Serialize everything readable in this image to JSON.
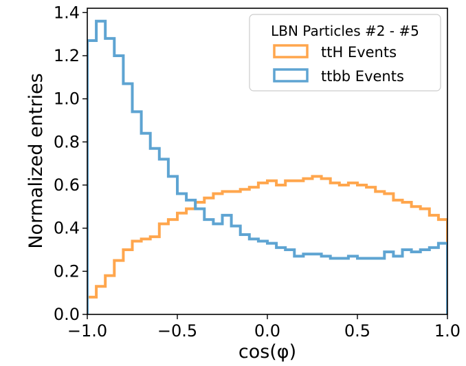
{
  "chart_data": {
    "type": "step-histogram",
    "xlabel": "cos(φ)",
    "ylabel": "Normalized entries",
    "xlim": [
      -1.0,
      1.0
    ],
    "ylim": [
      0.0,
      1.42
    ],
    "xticks": [
      -1.0,
      -0.5,
      0.0,
      0.5,
      1.0
    ],
    "xtick_labels": [
      "−1.0",
      "−0.5",
      "0.0",
      "0.5",
      "1.0"
    ],
    "yticks": [
      0.0,
      0.2,
      0.4,
      0.6,
      0.8,
      1.0,
      1.2,
      1.4
    ],
    "ytick_labels": [
      "0.0",
      "0.2",
      "0.4",
      "0.6",
      "0.8",
      "1.0",
      "1.2",
      "1.4"
    ],
    "legend": {
      "title": "LBN Particles #2 - #5",
      "loc": "upper right"
    },
    "bins": 40,
    "series": [
      {
        "name": "ttH Events",
        "color": "#ffa64d",
        "values": [
          0.08,
          0.13,
          0.18,
          0.25,
          0.3,
          0.34,
          0.35,
          0.36,
          0.42,
          0.44,
          0.47,
          0.49,
          0.52,
          0.54,
          0.56,
          0.57,
          0.57,
          0.58,
          0.59,
          0.61,
          0.62,
          0.6,
          0.62,
          0.62,
          0.63,
          0.64,
          0.63,
          0.61,
          0.6,
          0.61,
          0.6,
          0.59,
          0.57,
          0.56,
          0.53,
          0.52,
          0.5,
          0.49,
          0.46,
          0.44
        ]
      },
      {
        "name": "ttbb Events",
        "color": "#5ea4d2",
        "values": [
          1.27,
          1.36,
          1.28,
          1.2,
          1.07,
          0.94,
          0.84,
          0.77,
          0.72,
          0.64,
          0.56,
          0.53,
          0.49,
          0.44,
          0.42,
          0.46,
          0.41,
          0.37,
          0.35,
          0.34,
          0.33,
          0.31,
          0.3,
          0.27,
          0.28,
          0.28,
          0.27,
          0.26,
          0.26,
          0.27,
          0.26,
          0.26,
          0.26,
          0.29,
          0.27,
          0.3,
          0.29,
          0.3,
          0.31,
          0.33
        ]
      }
    ]
  }
}
